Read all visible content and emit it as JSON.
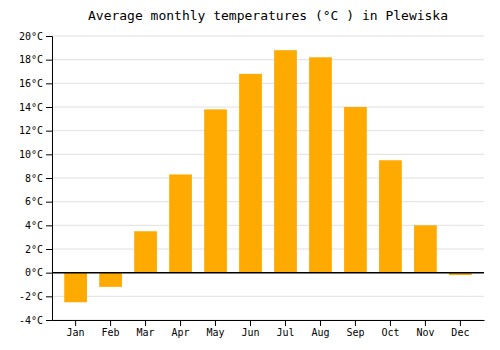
{
  "chart_data": {
    "type": "bar",
    "title": "Average monthly temperatures (°C ) in Plewiska",
    "categories": [
      "Jan",
      "Feb",
      "Mar",
      "Apr",
      "May",
      "Jun",
      "Jul",
      "Aug",
      "Sep",
      "Oct",
      "Nov",
      "Dec"
    ],
    "values": [
      -2.5,
      -1.2,
      3.5,
      8.3,
      13.8,
      16.8,
      18.8,
      18.2,
      14.0,
      9.5,
      4.0,
      -0.2
    ],
    "color": "#FFAA00",
    "ylim": [
      -4,
      20
    ],
    "yticks": [
      {
        "value": -4,
        "label": "-4°C"
      },
      {
        "value": -2,
        "label": "-2°C"
      },
      {
        "value": 0,
        "label": "0°C"
      },
      {
        "value": 2,
        "label": "2°C"
      },
      {
        "value": 4,
        "label": "4°C"
      },
      {
        "value": 6,
        "label": "6°C"
      },
      {
        "value": 8,
        "label": "8°C"
      },
      {
        "value": 10,
        "label": "10°C"
      },
      {
        "value": 12,
        "label": "12°C"
      },
      {
        "value": 14,
        "label": "14°C"
      },
      {
        "value": 16,
        "label": "16°C"
      },
      {
        "value": 18,
        "label": "18°C"
      },
      {
        "value": 20,
        "label": "20°C"
      }
    ],
    "grid": true
  }
}
